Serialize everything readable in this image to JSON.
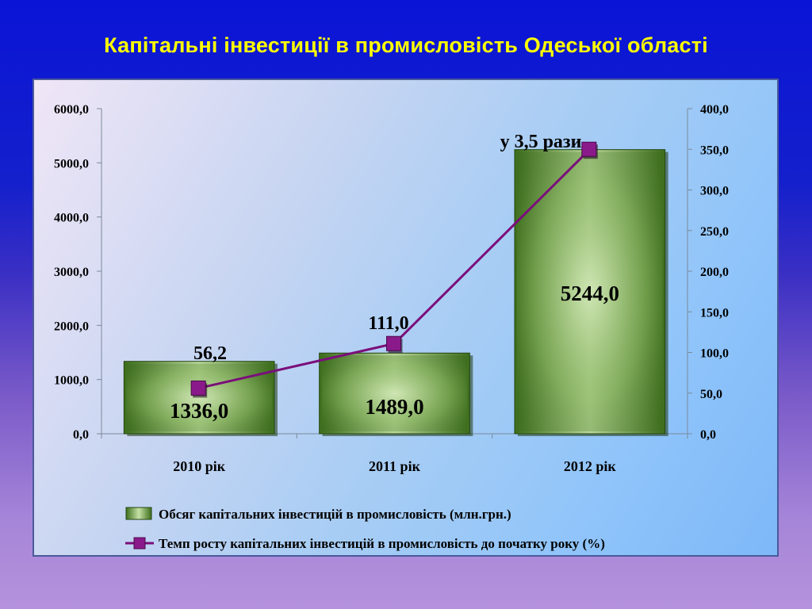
{
  "slide": {
    "title": "Капітальні інвестиції в промисловість Одеської області"
  },
  "chart_data": {
    "type": "bar",
    "categories": [
      "2010 рік",
      "2011 рік",
      "2012 рік"
    ],
    "series": [
      {
        "name": "Обсяг капітальних інвестицій в промисловість (млн.грн.)",
        "type": "bar",
        "axis": "left",
        "values": [
          1336.0,
          1489.0,
          5244.0
        ],
        "labels": [
          "1336,0",
          "1489,0",
          "5244,0"
        ],
        "color": "#4f8a2e"
      },
      {
        "name": "Темп росту капітальних інвестицій в промисловість до початку року (%)",
        "type": "line",
        "axis": "right",
        "values": [
          56.2,
          111.0,
          350.0
        ],
        "labels": [
          "56,2",
          "111,0",
          "у 3,5 рази"
        ],
        "color": "#7a0f7a"
      }
    ],
    "y_left": {
      "range": [
        0,
        6000
      ],
      "ticks": [
        "0,0",
        "1000,0",
        "2000,0",
        "3000,0",
        "4000,0",
        "5000,0",
        "6000,0"
      ]
    },
    "y_right": {
      "range": [
        0,
        400
      ],
      "ticks": [
        "0,0",
        "50,0",
        "100,0",
        "150,0",
        "200,0",
        "250,0",
        "300,0",
        "350,0",
        "400,0"
      ]
    },
    "grid": false,
    "legend_position": "bottom"
  }
}
